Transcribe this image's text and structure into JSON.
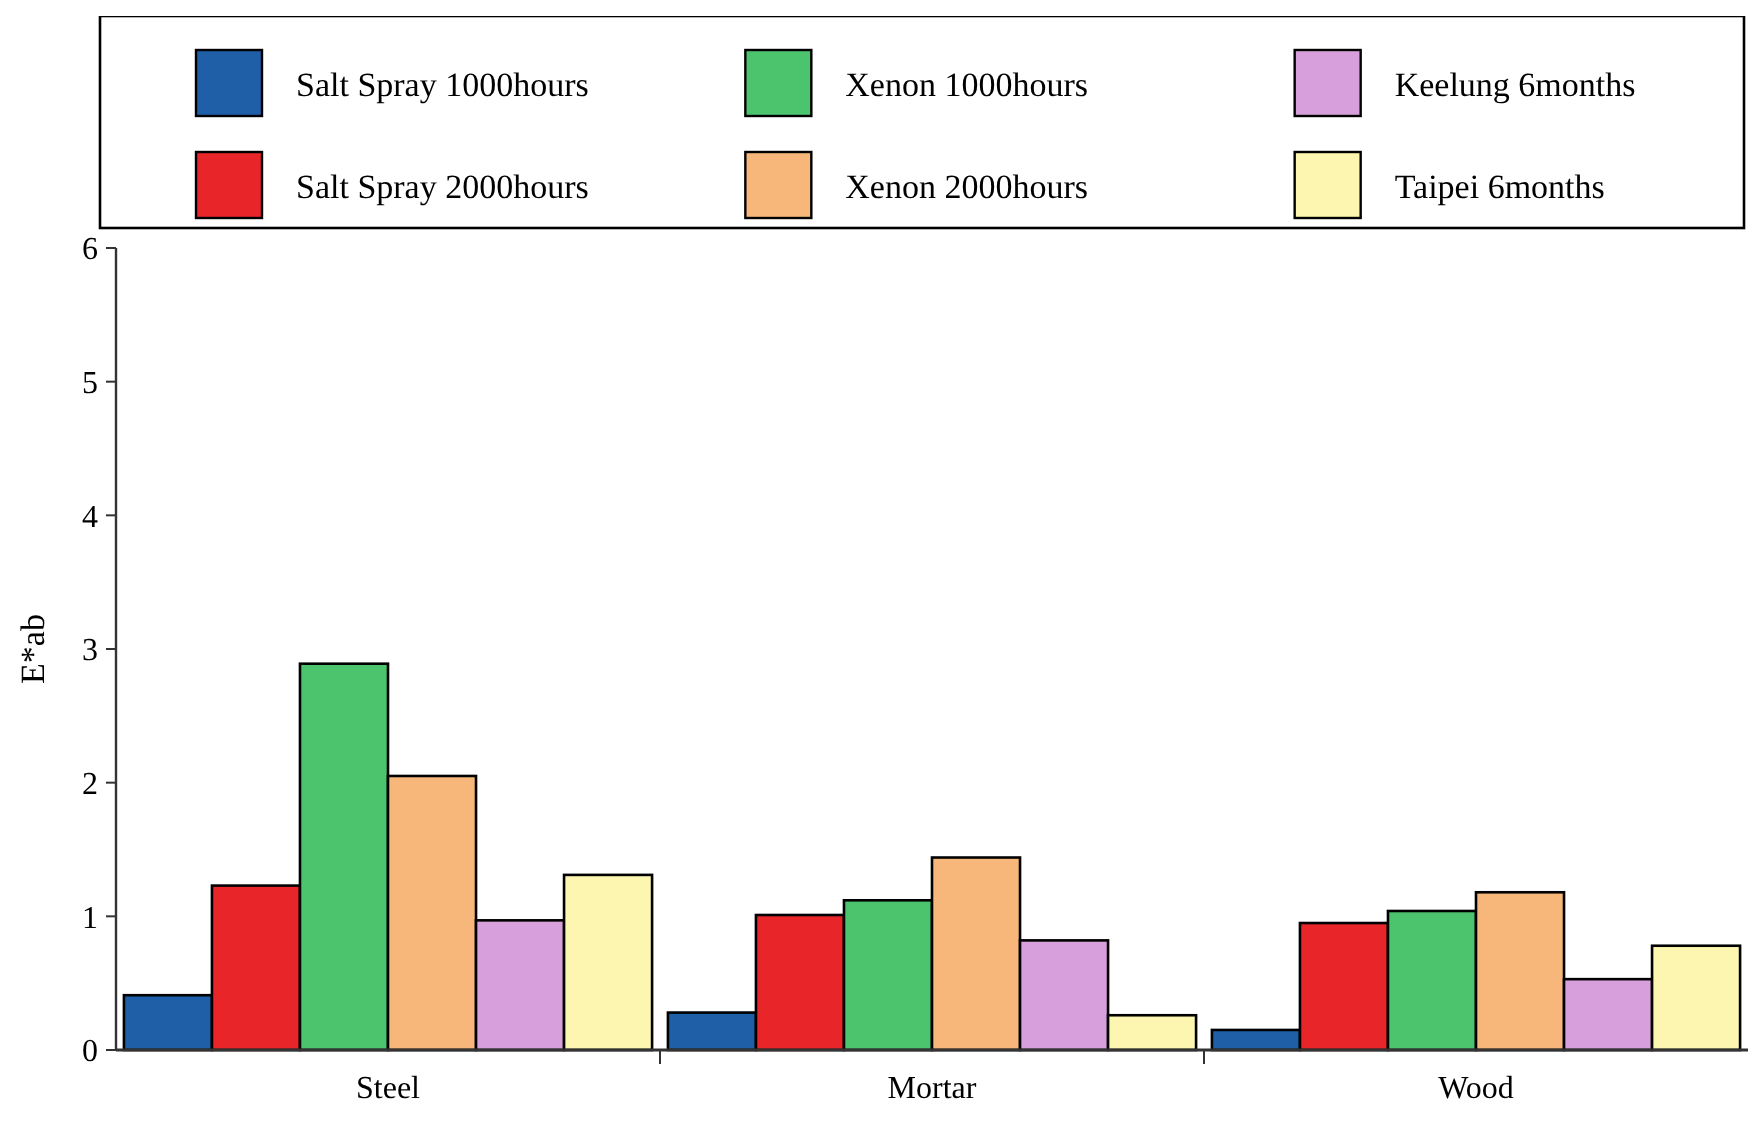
{
  "chart_data": {
    "type": "bar",
    "ylabel": "E*ab",
    "categories": [
      "Steel",
      "Mortar",
      "Wood"
    ],
    "series": [
      {
        "name": "Salt Spray 1000hours",
        "color": "#1f5fa8",
        "values": [
          0.41,
          0.28,
          0.15
        ]
      },
      {
        "name": "Salt Spray 2000hours",
        "color": "#e8262a",
        "values": [
          1.23,
          1.01,
          0.95
        ]
      },
      {
        "name": "Xenon 1000hours",
        "color": "#4cc46e",
        "values": [
          2.89,
          1.12,
          1.04
        ]
      },
      {
        "name": "Xenon 2000hours",
        "color": "#f7b77a",
        "values": [
          2.05,
          1.44,
          1.18
        ]
      },
      {
        "name": "Keelung  6months",
        "color": "#d7a0dc",
        "values": [
          0.97,
          0.82,
          0.53
        ]
      },
      {
        "name": "Taipei  6months",
        "color": "#fcf6b0",
        "values": [
          1.31,
          0.26,
          0.78
        ]
      }
    ],
    "ylim": [
      0,
      6
    ],
    "yticks": [
      0,
      1,
      2,
      3,
      4,
      5,
      6
    ],
    "grid": false,
    "legend": "top"
  }
}
